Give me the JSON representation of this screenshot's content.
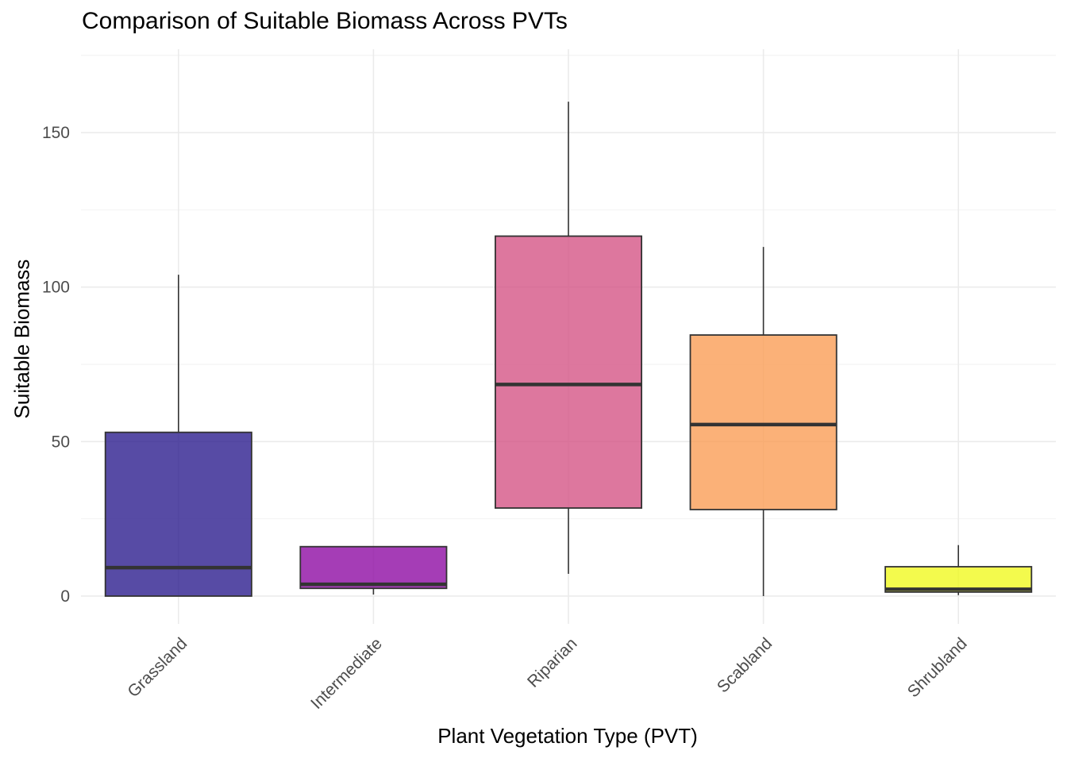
{
  "chart_data": {
    "type": "box",
    "title": "Comparison of Suitable Biomass Across PVTs",
    "xlabel": "Plant Vegetation Type (PVT)",
    "ylabel": "Suitable Biomass",
    "ylim": [
      -9,
      177
    ],
    "yticks": [
      0,
      50,
      100,
      150
    ],
    "grid": true,
    "legend": "none",
    "categories": [
      "Grassland",
      "Intermediate",
      "Riparian",
      "Scabland",
      "Shrubland"
    ],
    "boxes": [
      {
        "category": "Grassland",
        "min": 0,
        "q1": 0,
        "median": 9.2,
        "q3": 53,
        "max": 104,
        "color": "#2D1E8E"
      },
      {
        "category": "Intermediate",
        "min": 0.5,
        "q1": 2.5,
        "median": 3.8,
        "q3": 16,
        "max": 16,
        "color": "#8F0DA4"
      },
      {
        "category": "Riparian",
        "min": 7.2,
        "q1": 28.5,
        "median": 68.5,
        "q3": 116.5,
        "max": 160,
        "color": "#D45586"
      },
      {
        "category": "Scabland",
        "min": 0,
        "q1": 28,
        "median": 55.5,
        "q3": 84.5,
        "max": 113,
        "color": "#FA9D56"
      },
      {
        "category": "Shrubland",
        "min": 0.3,
        "q1": 1.3,
        "median": 2.2,
        "q3": 9.5,
        "max": 16.5,
        "color": "#F0F921"
      }
    ]
  }
}
